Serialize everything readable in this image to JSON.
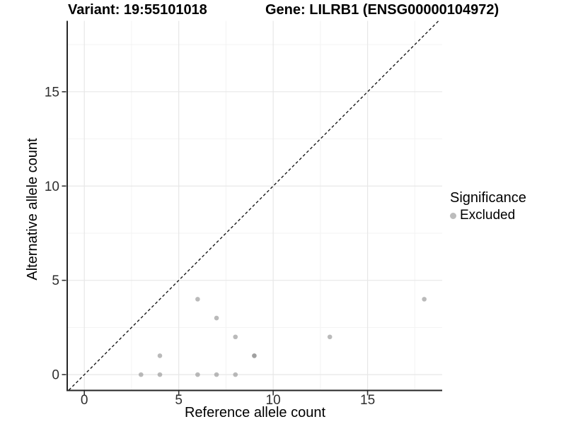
{
  "header": {
    "variant_title": "Variant: 19:55101018",
    "gene_title": "Gene: LILRB1 (ENSG00000104972)"
  },
  "legend": {
    "title": "Significance",
    "items": [
      {
        "label": "Excluded",
        "color": "#bcbcbc"
      }
    ]
  },
  "chart_data": {
    "type": "scatter",
    "xlabel": "Reference allele count",
    "ylabel": "Alternative allele count",
    "xlim": [
      -0.87,
      18.95
    ],
    "ylim": [
      -0.82,
      18.76
    ],
    "x_major_ticks": [
      0,
      5,
      10,
      15
    ],
    "y_major_ticks": [
      0,
      5,
      10,
      15
    ],
    "x_minor_ticks": [
      2.5,
      7.5,
      12.5,
      17.5
    ],
    "y_minor_ticks": [
      2.5,
      7.5,
      12.5,
      17.5
    ],
    "grid": true,
    "identity_line": {
      "style": "dashed",
      "slope": 1,
      "intercept": 0
    },
    "series": [
      {
        "name": "Excluded",
        "color": "#8f8f8f",
        "opacity": 0.62,
        "points": [
          [
            3,
            0
          ],
          [
            4,
            0
          ],
          [
            4,
            1
          ],
          [
            6,
            0
          ],
          [
            6,
            4
          ],
          [
            7,
            0
          ],
          [
            7,
            3
          ],
          [
            8,
            0
          ],
          [
            8,
            2
          ],
          [
            9,
            1
          ],
          [
            9,
            1
          ],
          [
            13,
            2
          ],
          [
            18,
            4
          ]
        ]
      }
    ],
    "style": {
      "grid_major_color": "#e7e7e7",
      "grid_minor_color": "#f3f3f3",
      "axis_line_color": "#262626",
      "tick_color": "#333333",
      "tick_label_color": "#2e2e2e",
      "identity_line_color": "#1a1a1a"
    }
  }
}
